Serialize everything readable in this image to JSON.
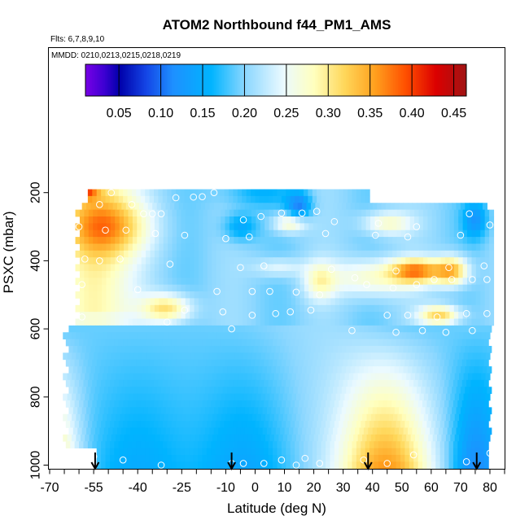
{
  "chart_data": {
    "type": "heatmap",
    "title": "ATOM2 Northbound f44_PM1_AMS",
    "subtitle_flights": "Flts: 6,7,8,9,10",
    "subtitle_dates": "MMDD: 0210,0213,0215,0218,0219",
    "xlabel": "Latitude (deg N)",
    "ylabel": "PSXC (mbar)",
    "xlim": [
      -70,
      85
    ],
    "ylim": [
      1020,
      50
    ],
    "x_ticks": [
      -70,
      -55,
      -40,
      -25,
      -10,
      0,
      10,
      20,
      30,
      40,
      50,
      60,
      70,
      80
    ],
    "x_tick_labels": [
      "-70",
      "-55",
      "-40",
      "-25",
      "-10",
      "0",
      "10",
      "20",
      "30",
      "40",
      "50",
      "60",
      "70",
      "80"
    ],
    "y_ticks": [
      200,
      400,
      600,
      800,
      1000
    ],
    "y_tick_labels": [
      "200",
      "400",
      "600",
      "800",
      "1000"
    ],
    "colorbar": {
      "min": 0.01,
      "max": 0.465,
      "ticks": [
        0.05,
        0.1,
        0.15,
        0.2,
        0.25,
        0.3,
        0.35,
        0.4,
        0.45
      ],
      "tick_labels": [
        "0.05",
        "0.10",
        "0.15",
        "0.20",
        "0.25",
        "0.30",
        "0.35",
        "0.40",
        "0.45"
      ]
    },
    "arrows_latitude": [
      -54.5,
      -8,
      38.5,
      75.5
    ],
    "observation_points": [
      [
        -53,
        235
      ],
      [
        -49,
        200
      ],
      [
        -42,
        235
      ],
      [
        -27,
        215
      ],
      [
        -21,
        213
      ],
      [
        -18,
        212
      ],
      [
        -14,
        200
      ],
      [
        -38,
        262
      ],
      [
        -35,
        262
      ],
      [
        -32,
        262
      ],
      [
        -4,
        280
      ],
      [
        2,
        270
      ],
      [
        9,
        260
      ],
      [
        16,
        260
      ],
      [
        21,
        255
      ],
      [
        27,
        285
      ],
      [
        42,
        290
      ],
      [
        55,
        300
      ],
      [
        73,
        262
      ],
      [
        80,
        295
      ],
      [
        -60,
        300
      ],
      [
        -51,
        310
      ],
      [
        -44,
        310
      ],
      [
        -34,
        320
      ],
      [
        -24,
        325
      ],
      [
        -10,
        335
      ],
      [
        -2,
        330
      ],
      [
        24,
        320
      ],
      [
        41,
        325
      ],
      [
        52,
        330
      ],
      [
        70,
        325
      ],
      [
        -62,
        400
      ],
      [
        -58,
        395
      ],
      [
        -53,
        400
      ],
      [
        -46,
        395
      ],
      [
        -29,
        410
      ],
      [
        -5,
        420
      ],
      [
        3,
        415
      ],
      [
        26,
        425
      ],
      [
        48,
        430
      ],
      [
        66,
        420
      ],
      [
        78,
        415
      ],
      [
        -65,
        460
      ],
      [
        -59,
        470
      ],
      [
        -40,
        485
      ],
      [
        -13,
        490
      ],
      [
        -1,
        490
      ],
      [
        5,
        490
      ],
      [
        14,
        492
      ],
      [
        22,
        500
      ],
      [
        34,
        450
      ],
      [
        38,
        470
      ],
      [
        47,
        480
      ],
      [
        55,
        470
      ],
      [
        61,
        455
      ],
      [
        67,
        455
      ],
      [
        74,
        455
      ],
      [
        79,
        455
      ],
      [
        -24,
        545
      ],
      [
        -11,
        550
      ],
      [
        -1,
        560
      ],
      [
        7,
        555
      ],
      [
        12,
        550
      ],
      [
        19,
        545
      ],
      [
        45,
        560
      ],
      [
        52,
        560
      ],
      [
        62,
        565
      ],
      [
        72,
        555
      ],
      [
        79,
        555
      ],
      [
        -64,
        560
      ],
      [
        -59,
        565
      ],
      [
        -30,
        580
      ],
      [
        -8,
        600
      ],
      [
        33,
        605
      ],
      [
        48,
        610
      ],
      [
        57,
        605
      ],
      [
        65,
        610
      ],
      [
        74,
        605
      ],
      [
        -55,
        975
      ],
      [
        -45,
        985
      ],
      [
        -32,
        1000
      ],
      [
        -8,
        995
      ],
      [
        -4,
        995
      ],
      [
        3,
        995
      ],
      [
        9,
        985
      ],
      [
        14,
        1000
      ],
      [
        17,
        980
      ],
      [
        22,
        995
      ],
      [
        37,
        985
      ],
      [
        45,
        995
      ],
      [
        54,
        970
      ],
      [
        72,
        990
      ],
      [
        80,
        965
      ]
    ]
  }
}
